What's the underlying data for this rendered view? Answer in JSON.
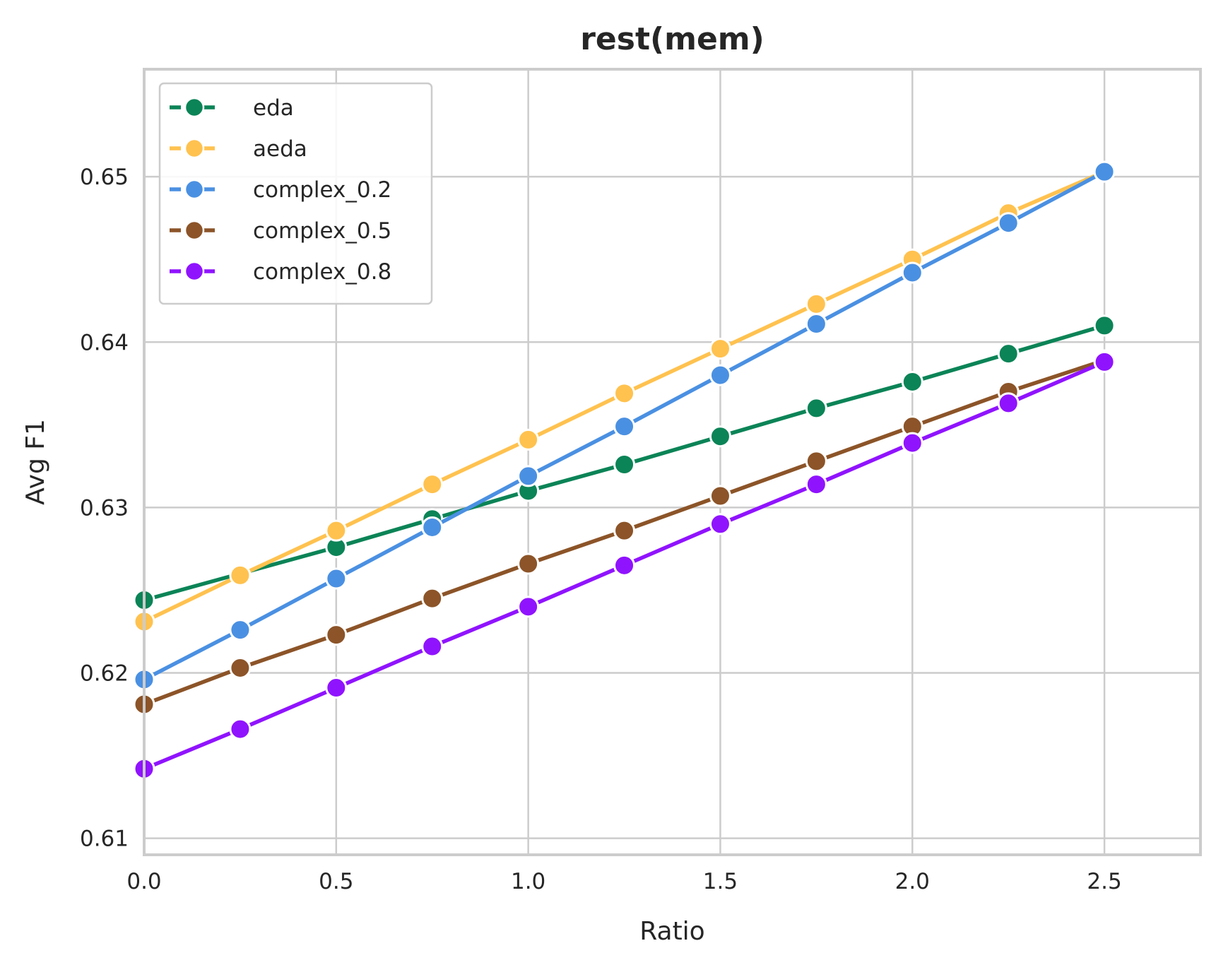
{
  "chart_data": {
    "type": "line",
    "title": "rest(mem)",
    "xlabel": "Ratio",
    "ylabel": "Avg F1",
    "xlim": [
      0.0,
      2.75
    ],
    "ylim": [
      0.609,
      0.6565
    ],
    "xticks": [
      0.0,
      0.5,
      1.0,
      1.5,
      2.0,
      2.5
    ],
    "xtick_labels": [
      "0.0",
      "0.5",
      "1.0",
      "1.5",
      "2.0",
      "2.5"
    ],
    "yticks": [
      0.61,
      0.62,
      0.63,
      0.64,
      0.65
    ],
    "ytick_labels": [
      "0.61",
      "0.62",
      "0.63",
      "0.64",
      "0.65"
    ],
    "grid": true,
    "legend_position": "top-left",
    "x": [
      0.0,
      0.25,
      0.5,
      0.75,
      1.0,
      1.25,
      1.5,
      1.75,
      2.0,
      2.25,
      2.5
    ],
    "series": [
      {
        "name": "eda",
        "color": "#0b8457",
        "values": [
          0.6244,
          0.626,
          0.6276,
          0.6293,
          0.631,
          0.6326,
          0.6343,
          0.636,
          0.6376,
          0.6393,
          0.641
        ]
      },
      {
        "name": "aeda",
        "color": "#ffc24f",
        "values": [
          0.6231,
          0.6259,
          0.6286,
          0.6314,
          0.6341,
          0.6369,
          0.6396,
          0.6423,
          0.645,
          0.6478,
          0.6503
        ]
      },
      {
        "name": "complex_0.2",
        "color": "#4a90e2",
        "values": [
          0.6196,
          0.6226,
          0.6257,
          0.6288,
          0.6319,
          0.6349,
          0.638,
          0.6411,
          0.6442,
          0.6472,
          0.6503
        ]
      },
      {
        "name": "complex_0.5",
        "color": "#8c5428",
        "values": [
          0.6181,
          0.6203,
          0.6223,
          0.6245,
          0.6266,
          0.6286,
          0.6307,
          0.6328,
          0.6349,
          0.637,
          0.6389
        ]
      },
      {
        "name": "complex_0.8",
        "color": "#9013fe",
        "values": [
          0.6142,
          0.6166,
          0.6191,
          0.6216,
          0.624,
          0.6265,
          0.629,
          0.6314,
          0.6339,
          0.6363,
          0.6388
        ]
      }
    ]
  }
}
